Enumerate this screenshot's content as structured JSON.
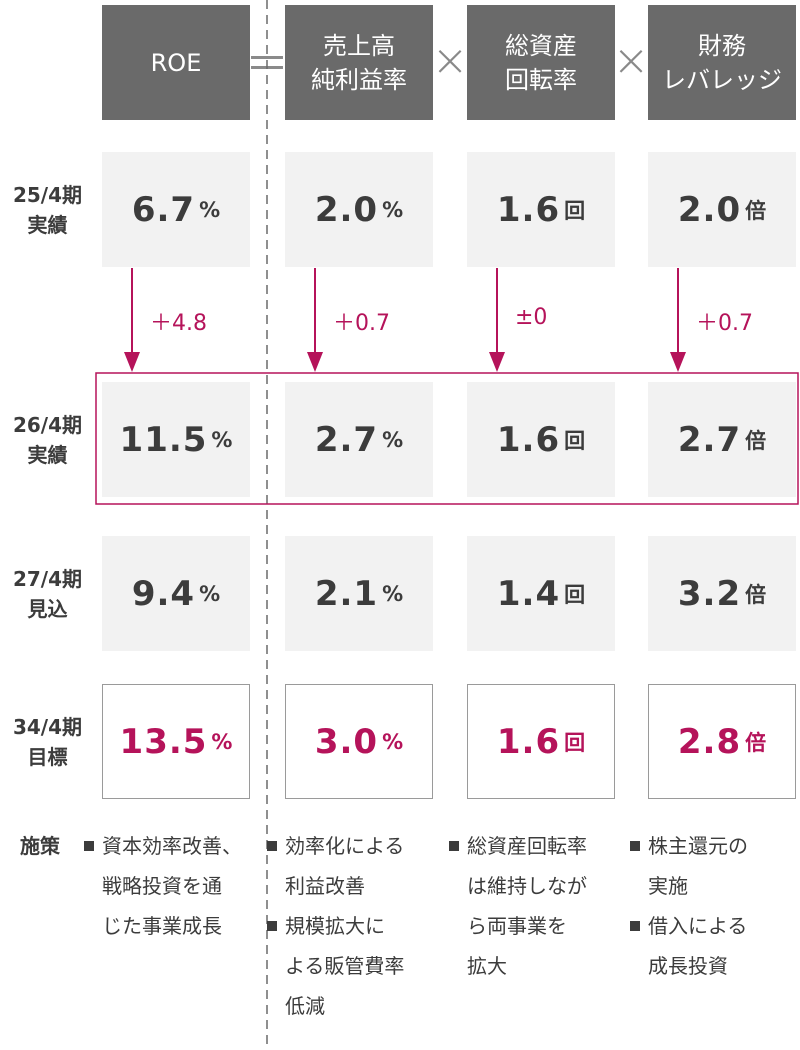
{
  "chart_data": {
    "type": "table",
    "columns": [
      {
        "id": "roe",
        "header": "ROE"
      },
      {
        "id": "margin",
        "header": "売上高\n純利益率"
      },
      {
        "id": "turnover",
        "header": "総資産\n回転率"
      },
      {
        "id": "leverage",
        "header": "財務\nレバレッジ"
      }
    ],
    "operators": [
      "＝",
      "×",
      "×"
    ],
    "rows": [
      {
        "label": "25/4期\n実績",
        "values": [
          "6.7",
          "2.0",
          "1.6",
          "2.0"
        ],
        "units": [
          "%",
          "%",
          "回",
          "倍"
        ]
      },
      {
        "label": "26/4期\n実績",
        "values": [
          "11.5",
          "2.7",
          "1.6",
          "2.7"
        ],
        "units": [
          "%",
          "%",
          "回",
          "倍"
        ]
      },
      {
        "label": "27/4期\n見込",
        "values": [
          "9.4",
          "2.1",
          "1.4",
          "3.2"
        ],
        "units": [
          "%",
          "%",
          "回",
          "倍"
        ]
      },
      {
        "label": "34/4期\n目標",
        "values": [
          "13.5",
          "3.0",
          "1.6",
          "2.8"
        ],
        "units": [
          "%",
          "%",
          "回",
          "倍"
        ]
      }
    ],
    "changes": [
      "＋4.8",
      "＋0.7",
      "±0",
      "＋0.7"
    ],
    "highlight_row": 1,
    "target_row": 3,
    "measures_label": "施策",
    "measures": [
      [
        "資本効率改善、\n戦略投資を通\nじた事業成長"
      ],
      [
        "効率化による\n利益改善",
        "規模拡大に\nよる販管費率\n低減"
      ],
      [
        "総資産回転率\nは維持しなが\nら両事業を\n拡大"
      ],
      [
        "株主還元の\n実施",
        "借入による\n成長投資"
      ]
    ],
    "colors": {
      "header": "#6a6a6a",
      "cell": "#f2f2f2",
      "accent": "#b5135a",
      "text": "#3c3c3c"
    }
  }
}
